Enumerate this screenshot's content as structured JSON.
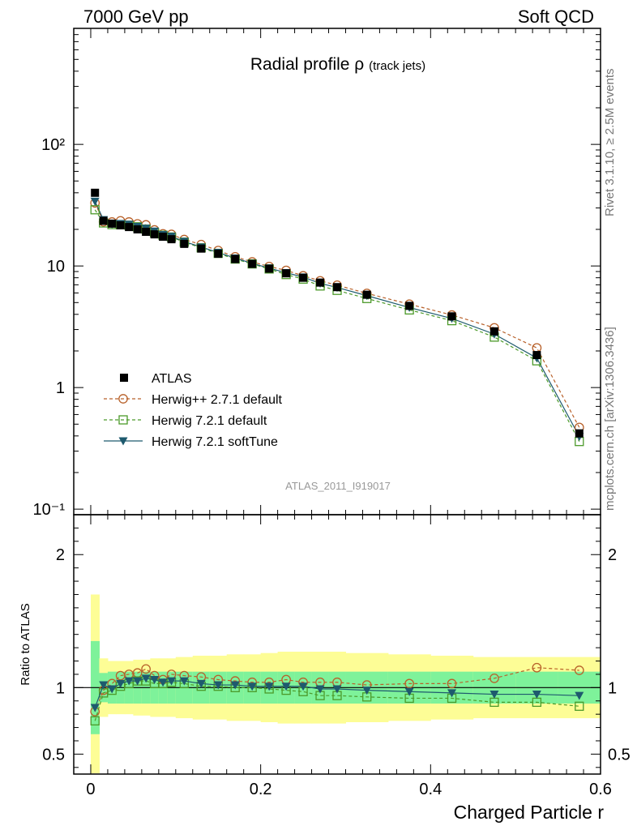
{
  "header": {
    "left": "7000 GeV pp",
    "right": "Soft QCD"
  },
  "side_text": {
    "rivet": "Rivet 3.1.10, ≥ 2.5M events",
    "mcplots": "mcplots.cern.ch [arXiv:1306.3436]"
  },
  "chart_data": {
    "type": "line",
    "title": "Radial profile",
    "title_symbol": "ρ",
    "title_suffix": "(track jets)",
    "watermark": "ATLAS_2011_I919017",
    "xlabel": "Charged Particle r",
    "ylabel_ratio": "Ratio to ATLAS",
    "xlim": [
      -0.02,
      0.6
    ],
    "ylim_main": [
      0.09,
      900
    ],
    "yscale_main": "log",
    "ylim_ratio": [
      0.35,
      2.3
    ],
    "x_ticks": [
      "0",
      "0.2",
      "0.4",
      "0.6"
    ],
    "y_ticks_main": [
      "10⁻¹",
      "1",
      "10",
      "10²"
    ],
    "y_ticks_ratio": [
      "0.5",
      "1",
      "2"
    ],
    "legend_position": "lower-left",
    "colors": {
      "data": "#000000",
      "herwigpp": "#b8612a",
      "herwig721": "#4c9a2a",
      "softtune": "#1e5a6e",
      "band_inner": "#7ef29a",
      "band_outer": "#fdfd96"
    },
    "x": [
      0.005,
      0.015,
      0.025,
      0.035,
      0.045,
      0.055,
      0.065,
      0.075,
      0.085,
      0.095,
      0.11,
      0.13,
      0.15,
      0.17,
      0.19,
      0.21,
      0.23,
      0.25,
      0.27,
      0.29,
      0.325,
      0.375,
      0.425,
      0.475,
      0.525,
      0.575
    ],
    "series": [
      {
        "name": "ATLAS",
        "style": "data",
        "values": [
          40,
          23.5,
          22.3,
          21.6,
          20.9,
          20.0,
          19.1,
          18.2,
          17.4,
          16.6,
          15.2,
          13.9,
          12.6,
          11.4,
          10.4,
          9.5,
          8.7,
          8.0,
          7.3,
          6.7,
          5.8,
          4.7,
          3.85,
          2.9,
          1.85,
          0.42
        ]
      },
      {
        "name": "Herwig++ 2.7.1 default",
        "style": "herwigpp",
        "values": [
          33,
          23.1,
          23.0,
          23.5,
          23.0,
          22.2,
          21.8,
          19.8,
          18.4,
          18.2,
          16.5,
          15.0,
          13.4,
          11.9,
          10.8,
          9.9,
          9.2,
          8.3,
          7.55,
          6.95,
          5.95,
          4.85,
          3.95,
          3.1,
          2.12,
          0.47
        ]
      },
      {
        "name": "Herwig 7.2.1 default",
        "style": "herwig721",
        "values": [
          29,
          22.6,
          21.9,
          21.8,
          21.6,
          21.0,
          20.1,
          18.8,
          17.9,
          17.3,
          15.7,
          14.1,
          12.7,
          11.4,
          10.4,
          9.45,
          8.5,
          7.8,
          6.85,
          6.3,
          5.4,
          4.35,
          3.55,
          2.6,
          1.66,
          0.36
        ]
      },
      {
        "name": "Herwig 7.2.1 softTune",
        "style": "softtune",
        "values": [
          34,
          24.0,
          22.1,
          22.3,
          22.0,
          21.1,
          20.4,
          19.3,
          18.1,
          17.5,
          15.9,
          14.3,
          12.9,
          11.6,
          10.5,
          9.6,
          8.8,
          8.1,
          7.2,
          6.65,
          5.7,
          4.55,
          3.7,
          2.75,
          1.75,
          0.395
        ]
      }
    ],
    "ratio_series": [
      {
        "name": "Herwig++ 2.7.1 default",
        "style": "herwigpp",
        "values": [
          0.82,
          0.98,
          1.03,
          1.09,
          1.1,
          1.11,
          1.14,
          1.09,
          1.06,
          1.1,
          1.09,
          1.08,
          1.06,
          1.05,
          1.04,
          1.04,
          1.06,
          1.04,
          1.04,
          1.04,
          1.02,
          1.03,
          1.03,
          1.07,
          1.15,
          1.13
        ]
      },
      {
        "name": "Herwig 7.2.1 default",
        "style": "herwig721",
        "values": [
          0.75,
          0.96,
          0.98,
          1.01,
          1.03,
          1.05,
          1.05,
          1.03,
          1.03,
          1.04,
          1.03,
          1.01,
          1.01,
          1.0,
          1.0,
          0.99,
          0.98,
          0.97,
          0.94,
          0.94,
          0.93,
          0.92,
          0.92,
          0.89,
          0.89,
          0.86
        ]
      },
      {
        "name": "Herwig 7.2.1 softTune",
        "style": "softtune",
        "values": [
          0.85,
          1.02,
          0.99,
          1.03,
          1.05,
          1.05,
          1.07,
          1.06,
          1.04,
          1.05,
          1.05,
          1.03,
          1.02,
          1.02,
          1.01,
          1.01,
          1.01,
          1.01,
          0.99,
          0.99,
          0.98,
          0.97,
          0.96,
          0.95,
          0.95,
          0.94
        ]
      }
    ],
    "uncertainty_bands": {
      "x_edges": [
        0.0,
        0.01,
        0.02,
        0.03,
        0.04,
        0.05,
        0.06,
        0.07,
        0.08,
        0.09,
        0.1,
        0.12,
        0.14,
        0.16,
        0.18,
        0.2,
        0.22,
        0.24,
        0.26,
        0.28,
        0.3,
        0.35,
        0.4,
        0.45,
        0.5,
        0.55,
        0.6
      ],
      "inner": [
        0.35,
        0.11,
        0.12,
        0.12,
        0.12,
        0.12,
        0.12,
        0.12,
        0.12,
        0.12,
        0.12,
        0.12,
        0.12,
        0.12,
        0.12,
        0.12,
        0.12,
        0.12,
        0.12,
        0.12,
        0.12,
        0.12,
        0.12,
        0.12,
        0.12,
        0.12
      ],
      "outer": [
        0.7,
        0.22,
        0.2,
        0.2,
        0.2,
        0.21,
        0.21,
        0.22,
        0.22,
        0.22,
        0.23,
        0.24,
        0.24,
        0.25,
        0.25,
        0.26,
        0.27,
        0.27,
        0.27,
        0.27,
        0.26,
        0.25,
        0.24,
        0.23,
        0.23,
        0.23
      ]
    }
  }
}
